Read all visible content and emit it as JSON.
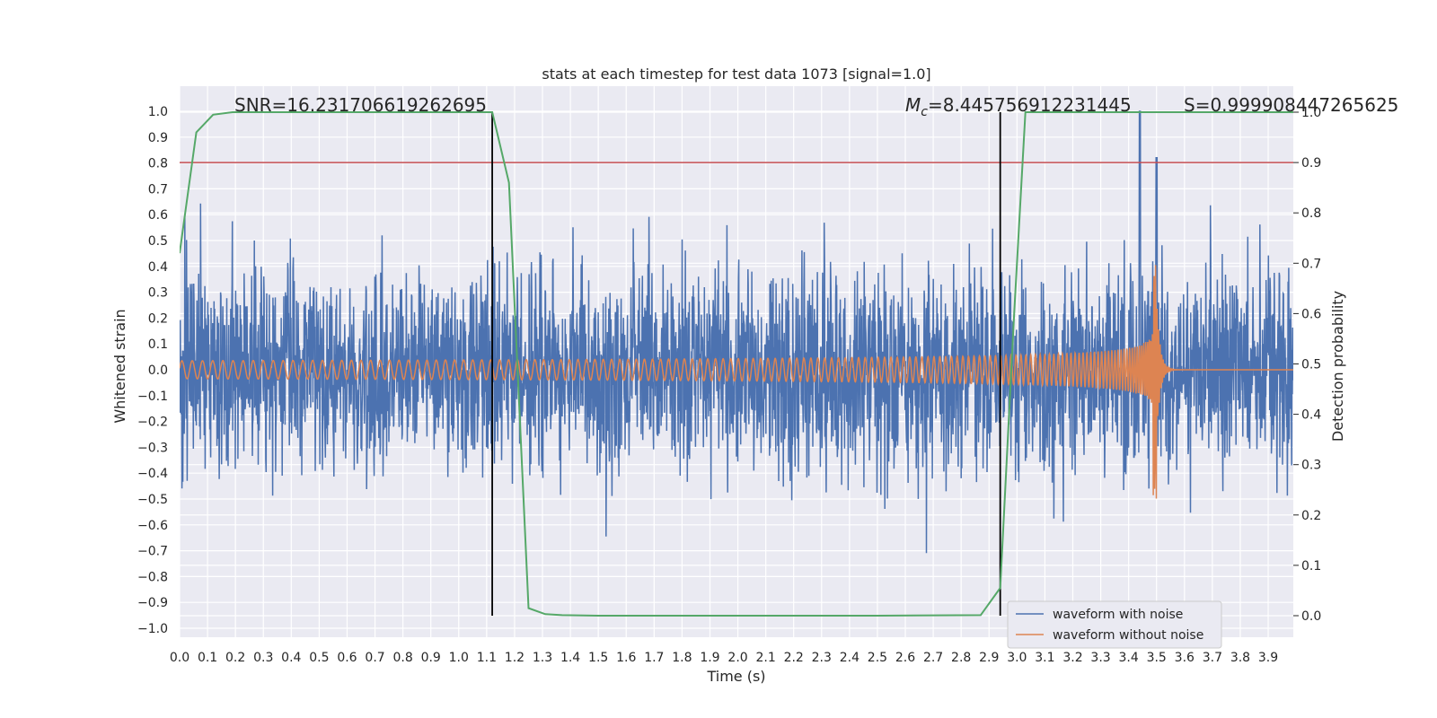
{
  "chart_data": {
    "type": "line",
    "title": "stats at each timestep for test data 1073 [signal=1.0]",
    "xlabel": "Time (s)",
    "ylabel_left": "Whitened strain",
    "ylabel_right": "Detection probability",
    "xlim": [
      0.0,
      3.99
    ],
    "ylim_left": [
      -1.03,
      1.1
    ],
    "ylim_right": [
      -0.05,
      1.05
    ],
    "x_ticks": [
      "0.0",
      "0.1",
      "0.2",
      "0.3",
      "0.4",
      "0.5",
      "0.6",
      "0.7",
      "0.8",
      "0.9",
      "1.0",
      "1.1",
      "1.2",
      "1.3",
      "1.4",
      "1.5",
      "1.6",
      "1.7",
      "1.8",
      "1.9",
      "2.0",
      "2.1",
      "2.2",
      "2.3",
      "2.4",
      "2.5",
      "2.6",
      "2.7",
      "2.8",
      "2.9",
      "3.0",
      "3.1",
      "3.2",
      "3.3",
      "3.4",
      "3.5",
      "3.6",
      "3.7",
      "3.8",
      "3.9"
    ],
    "y_ticks_left": [
      "1.0",
      "0.9",
      "0.8",
      "0.7",
      "0.6",
      "0.5",
      "0.4",
      "0.3",
      "0.2",
      "0.1",
      "0.0",
      "−0.1",
      "−0.2",
      "−0.3",
      "−0.4",
      "−0.5",
      "−0.6",
      "−0.7",
      "−0.8",
      "−0.9",
      "−1.0"
    ],
    "y_ticks_right": [
      "1.0",
      "0.9",
      "0.8",
      "0.7",
      "0.6",
      "0.5",
      "0.4",
      "0.3",
      "0.2",
      "0.1",
      "0.0"
    ],
    "grid": true,
    "legend_position": "bottom-right",
    "annotations": {
      "snr": "SNR=16.231706619262695",
      "mc_symbol": "M",
      "mc_sub": "c",
      "mc_value": "=8.445756912231445",
      "s": "S=0.999908447265625"
    },
    "colors": {
      "background": "#eaeaf2",
      "grid": "#ffffff",
      "noisy": "#4c72b0",
      "clean": "#dd8452",
      "probability": "#55a868",
      "threshold": "#c44e52",
      "marker": "#000000"
    },
    "series": [
      {
        "name": "waveform with noise",
        "axis": "left",
        "description_values": "dense noise, typical amplitude ±0.3 with peaks to ±0.8; spikes at t≈3.44 (1.0) and t≈3.50 (0.82)"
      },
      {
        "name": "waveform without noise",
        "axis": "left",
        "chirp": {
          "t_start": 0.0,
          "t_merger": 3.5,
          "f_start": 27,
          "f_end": 180,
          "amp_start": 0.035,
          "amp_peak": 0.41,
          "amp_trough": -0.5
        }
      },
      {
        "name": "detection probability",
        "axis": "right",
        "x": [
          0.0,
          0.06,
          0.12,
          0.19,
          0.25,
          1.06,
          1.12,
          1.18,
          1.25,
          1.31,
          1.37,
          1.5,
          2.5,
          2.87,
          2.94,
          2.99,
          3.03,
          3.99
        ],
        "y": [
          0.72,
          0.96,
          0.995,
          1.0,
          1.0,
          1.0,
          1.0,
          0.86,
          0.015,
          0.003,
          0.001,
          0.0,
          0.0,
          0.001,
          0.055,
          0.6,
          1.0,
          1.0
        ]
      }
    ],
    "threshold_line": {
      "axis": "right",
      "y": 0.9
    },
    "marker_lines": [
      {
        "x": 1.12,
        "from": 0.0,
        "to": 1.0
      },
      {
        "x": 2.94,
        "from": 0.0,
        "to": 1.0
      }
    ]
  }
}
